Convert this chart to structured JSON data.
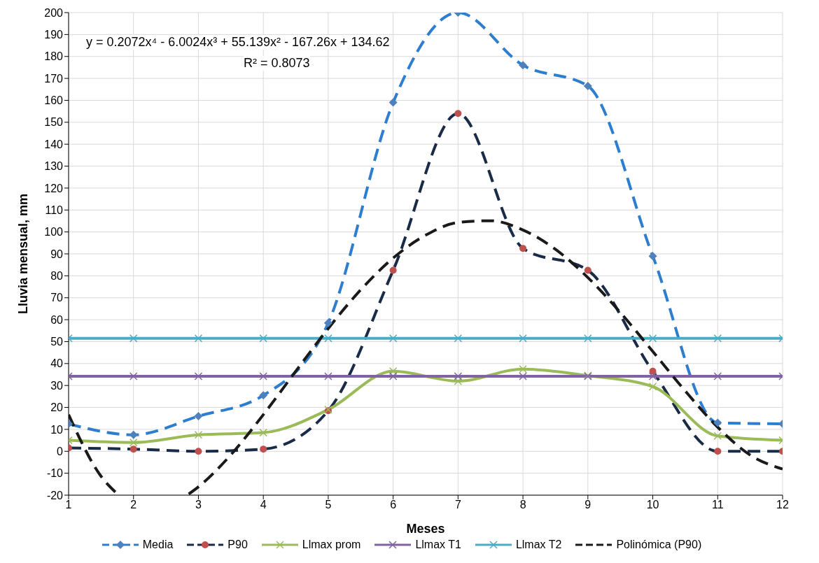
{
  "chart_data": {
    "type": "line",
    "xlabel": "Meses",
    "ylabel": "Lluvia mensual, mm",
    "annotations": [
      "y = 0.2072x⁴ - 6.0024x³ + 55.139x² - 167.26x + 134.62",
      "R² = 0.8073"
    ],
    "x": [
      1,
      2,
      3,
      4,
      5,
      6,
      7,
      8,
      9,
      10,
      11,
      12
    ],
    "xlim": [
      1,
      12
    ],
    "xticks": [
      1,
      2,
      3,
      4,
      5,
      6,
      7,
      8,
      9,
      10,
      11,
      12
    ],
    "ylim": [
      -20,
      200
    ],
    "yticks": [
      -20,
      -10,
      0,
      10,
      20,
      30,
      40,
      50,
      60,
      70,
      80,
      90,
      100,
      110,
      120,
      130,
      140,
      150,
      160,
      170,
      180,
      190,
      200
    ],
    "grid": true,
    "legend": "bottom",
    "series": [
      {
        "name": "Media",
        "color": "#2e7ed0",
        "marker": "diamond",
        "line_style": "dashed",
        "values": [
          12.5,
          7.5,
          16,
          25.5,
          58.5,
          159,
          200,
          176,
          166.5,
          89,
          13,
          12.5
        ]
      },
      {
        "name": "P90",
        "color": "#1a2b48",
        "marker": "circle",
        "line_style": "dashed",
        "values": [
          1.5,
          1,
          0,
          1,
          18.5,
          82.5,
          154,
          92.5,
          82.5,
          36.5,
          0,
          0
        ]
      },
      {
        "name": "Llmax prom",
        "color": "#9bbb59",
        "marker": "cross",
        "line_style": "solid",
        "values": [
          5,
          4,
          7.5,
          8.5,
          19,
          36.5,
          32,
          37.5,
          34.5,
          29.5,
          7,
          5
        ]
      },
      {
        "name": "Llmax T1",
        "color": "#8064a2",
        "marker": "cross",
        "line_style": "solid",
        "values": [
          34.2,
          34.2,
          34.2,
          34.2,
          34.2,
          34.2,
          34.2,
          34.2,
          34.2,
          34.2,
          34.2,
          34.2
        ]
      },
      {
        "name": "Llmax T2",
        "color": "#4bacc6",
        "marker": "cross",
        "line_style": "solid",
        "values": [
          51.5,
          51.5,
          51.5,
          51.5,
          51.5,
          51.5,
          51.5,
          51.5,
          51.5,
          51.5,
          51.5,
          51.5
        ]
      },
      {
        "name": "Polinómica (P90)",
        "color": "#1a1a1a",
        "marker": "none",
        "line_style": "dashed",
        "x": [
          1,
          1.5,
          1.75,
          2,
          2.5,
          2.85,
          3,
          3.5,
          4,
          4.5,
          5,
          5.5,
          6,
          6.5,
          7,
          7.5,
          8,
          8.5,
          9,
          9.5,
          10,
          10.5,
          11,
          11.5,
          12
        ],
        "values": [
          16.7,
          -11.4,
          -19.4,
          null,
          null,
          -19.5,
          -16.2,
          -1.6,
          16.7,
          36.5,
          56,
          73.6,
          88.1,
          98.5,
          104.3,
          105.1,
          100.9,
          92.1,
          79.2,
          63.3,
          45.5,
          27.5,
          11,
          -1.7,
          -8.1
        ]
      }
    ]
  }
}
